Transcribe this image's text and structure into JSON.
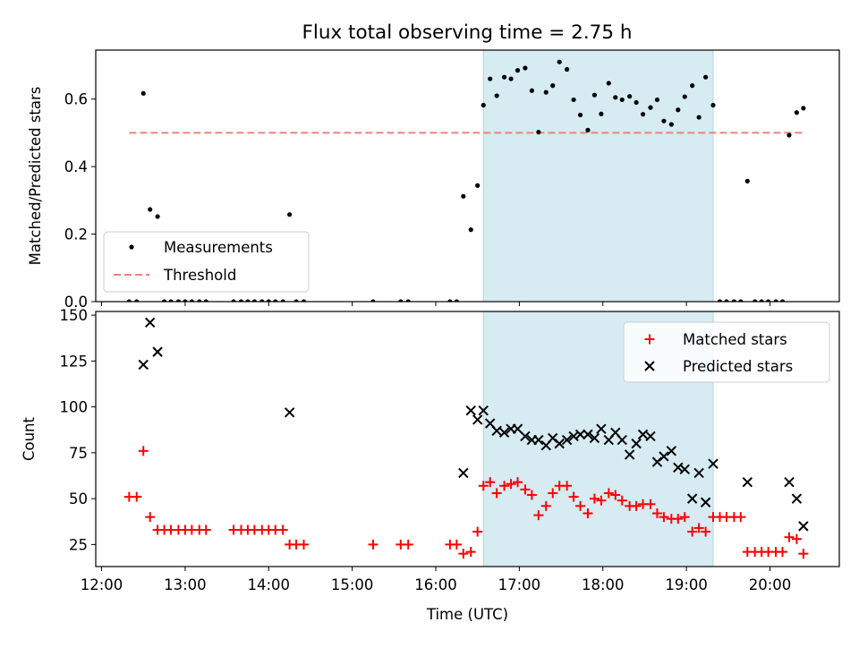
{
  "title": "Flux total observing time = 2.75 h",
  "colors": {
    "measurement": "#000000",
    "threshold": "#f08080",
    "shade": "#add8e6",
    "matched": "#ff0000",
    "predicted": "#000000"
  },
  "chart_data": [
    {
      "type": "scatter",
      "panel": "top",
      "title": "Flux total observing time = 2.75 h",
      "xlabel": "",
      "ylabel": "Matched/Predicted stars",
      "ylim": [
        0,
        0.745
      ],
      "yticks": [
        0.0,
        0.2,
        0.4,
        0.6
      ],
      "ytick_labels": [
        "0.0",
        "0.2",
        "0.4",
        "0.6"
      ],
      "xlim": [
        11.93,
        20.83
      ],
      "xticks": [
        12,
        13,
        14,
        15,
        16,
        17,
        18,
        19,
        20
      ],
      "xtick_labels": [
        "12:00",
        "13:00",
        "14:00",
        "15:00",
        "16:00",
        "17:00",
        "18:00",
        "19:00",
        "20:00"
      ],
      "legend": {
        "position": "lower-left",
        "entries": [
          "Measurements",
          "Threshold"
        ]
      },
      "threshold": {
        "name": "Threshold",
        "y": 0.5,
        "x_range": [
          12.33,
          20.42
        ]
      },
      "shaded_region": {
        "x_start": 16.57,
        "x_end": 19.32
      },
      "series": [
        {
          "name": "Measurements",
          "points": [
            [
              12.33,
              0.0
            ],
            [
              12.42,
              0.0
            ],
            [
              12.5,
              0.617
            ],
            [
              12.58,
              0.273
            ],
            [
              12.67,
              0.252
            ],
            [
              12.75,
              0.0
            ],
            [
              12.83,
              0.0
            ],
            [
              12.92,
              0.0
            ],
            [
              13.0,
              0.0
            ],
            [
              13.08,
              0.0
            ],
            [
              13.17,
              0.0
            ],
            [
              13.25,
              0.0
            ],
            [
              13.58,
              0.0
            ],
            [
              13.67,
              0.0
            ],
            [
              13.75,
              0.0
            ],
            [
              13.83,
              0.0
            ],
            [
              13.92,
              0.0
            ],
            [
              14.0,
              0.0
            ],
            [
              14.08,
              0.0
            ],
            [
              14.17,
              0.0
            ],
            [
              14.25,
              0.258
            ],
            [
              14.33,
              0.0
            ],
            [
              14.42,
              0.0
            ],
            [
              15.25,
              0.0
            ],
            [
              15.58,
              0.0
            ],
            [
              15.67,
              0.0
            ],
            [
              16.17,
              0.0
            ],
            [
              16.25,
              0.0
            ],
            [
              16.33,
              0.312
            ],
            [
              16.42,
              0.213
            ],
            [
              16.5,
              0.344
            ],
            [
              16.57,
              0.582
            ],
            [
              16.65,
              0.66
            ],
            [
              16.73,
              0.61
            ],
            [
              16.82,
              0.665
            ],
            [
              16.9,
              0.66
            ],
            [
              16.98,
              0.685
            ],
            [
              17.07,
              0.692
            ],
            [
              17.15,
              0.625
            ],
            [
              17.23,
              0.502
            ],
            [
              17.32,
              0.62
            ],
            [
              17.4,
              0.64
            ],
            [
              17.48,
              0.71
            ],
            [
              17.57,
              0.688
            ],
            [
              17.65,
              0.598
            ],
            [
              17.73,
              0.553
            ],
            [
              17.82,
              0.508
            ],
            [
              17.9,
              0.612
            ],
            [
              17.98,
              0.556
            ],
            [
              18.07,
              0.647
            ],
            [
              18.15,
              0.605
            ],
            [
              18.23,
              0.598
            ],
            [
              18.32,
              0.608
            ],
            [
              18.4,
              0.59
            ],
            [
              18.48,
              0.555
            ],
            [
              18.57,
              0.575
            ],
            [
              18.65,
              0.598
            ],
            [
              18.73,
              0.535
            ],
            [
              18.82,
              0.525
            ],
            [
              18.9,
              0.568
            ],
            [
              18.98,
              0.607
            ],
            [
              19.07,
              0.64
            ],
            [
              19.15,
              0.546
            ],
            [
              19.23,
              0.665
            ],
            [
              19.32,
              0.582
            ],
            [
              19.4,
              0.0
            ],
            [
              19.48,
              0.0
            ],
            [
              19.57,
              0.0
            ],
            [
              19.65,
              0.0
            ],
            [
              19.73,
              0.357
            ],
            [
              19.82,
              0.0
            ],
            [
              19.9,
              0.0
            ],
            [
              19.98,
              0.0
            ],
            [
              20.07,
              0.0
            ],
            [
              20.15,
              0.0
            ],
            [
              20.23,
              0.493
            ],
            [
              20.32,
              0.56
            ],
            [
              20.4,
              0.573
            ]
          ]
        }
      ]
    },
    {
      "type": "scatter",
      "panel": "bottom",
      "xlabel": "Time (UTC)",
      "ylabel": "Count",
      "ylim": [
        13,
        152
      ],
      "yticks": [
        25,
        50,
        75,
        100,
        125,
        150
      ],
      "ytick_labels": [
        "25",
        "50",
        "75",
        "100",
        "125",
        "150"
      ],
      "xlim": [
        11.93,
        20.83
      ],
      "xticks": [
        12,
        13,
        14,
        15,
        16,
        17,
        18,
        19,
        20
      ],
      "xtick_labels": [
        "12:00",
        "13:00",
        "14:00",
        "15:00",
        "16:00",
        "17:00",
        "18:00",
        "19:00",
        "20:00"
      ],
      "legend": {
        "position": "upper-right",
        "entries": [
          "Matched stars",
          "Predicted stars"
        ]
      },
      "shaded_region": {
        "x_start": 16.57,
        "x_end": 19.32
      },
      "series": [
        {
          "name": "Matched stars",
          "marker": "+",
          "points": [
            [
              12.33,
              51
            ],
            [
              12.42,
              51
            ],
            [
              12.5,
              76
            ],
            [
              12.58,
              40
            ],
            [
              12.67,
              33
            ],
            [
              12.75,
              33
            ],
            [
              12.83,
              33
            ],
            [
              12.92,
              33
            ],
            [
              13.0,
              33
            ],
            [
              13.08,
              33
            ],
            [
              13.17,
              33
            ],
            [
              13.25,
              33
            ],
            [
              13.58,
              33
            ],
            [
              13.67,
              33
            ],
            [
              13.75,
              33
            ],
            [
              13.83,
              33
            ],
            [
              13.92,
              33
            ],
            [
              14.0,
              33
            ],
            [
              14.08,
              33
            ],
            [
              14.17,
              33
            ],
            [
              14.25,
              25
            ],
            [
              14.33,
              25
            ],
            [
              14.42,
              25
            ],
            [
              15.25,
              25
            ],
            [
              15.58,
              25
            ],
            [
              15.67,
              25
            ],
            [
              16.17,
              25
            ],
            [
              16.25,
              25
            ],
            [
              16.33,
              20
            ],
            [
              16.42,
              21
            ],
            [
              16.5,
              32
            ],
            [
              16.57,
              57
            ],
            [
              16.65,
              59
            ],
            [
              16.73,
              53
            ],
            [
              16.82,
              57
            ],
            [
              16.9,
              58
            ],
            [
              16.98,
              59
            ],
            [
              17.07,
              55
            ],
            [
              17.15,
              52
            ],
            [
              17.23,
              41
            ],
            [
              17.32,
              46
            ],
            [
              17.4,
              53
            ],
            [
              17.48,
              57
            ],
            [
              17.57,
              57
            ],
            [
              17.65,
              51
            ],
            [
              17.73,
              46
            ],
            [
              17.82,
              42
            ],
            [
              17.9,
              50
            ],
            [
              17.98,
              49
            ],
            [
              18.07,
              53
            ],
            [
              18.15,
              52
            ],
            [
              18.23,
              49
            ],
            [
              18.32,
              46
            ],
            [
              18.4,
              46
            ],
            [
              18.48,
              47
            ],
            [
              18.57,
              47
            ],
            [
              18.65,
              42
            ],
            [
              18.73,
              40
            ],
            [
              18.82,
              39
            ],
            [
              18.9,
              39
            ],
            [
              18.98,
              40
            ],
            [
              19.07,
              32
            ],
            [
              19.15,
              34
            ],
            [
              19.23,
              32
            ],
            [
              19.32,
              40
            ],
            [
              19.4,
              40
            ],
            [
              19.48,
              40
            ],
            [
              19.57,
              40
            ],
            [
              19.65,
              40
            ],
            [
              19.73,
              21
            ],
            [
              19.82,
              21
            ],
            [
              19.9,
              21
            ],
            [
              19.98,
              21
            ],
            [
              20.07,
              21
            ],
            [
              20.15,
              21
            ],
            [
              20.23,
              29
            ],
            [
              20.32,
              28
            ],
            [
              20.4,
              20
            ]
          ]
        },
        {
          "name": "Predicted stars",
          "marker": "x",
          "points": [
            [
              12.5,
              123
            ],
            [
              12.58,
              146
            ],
            [
              12.67,
              130
            ],
            [
              14.25,
              97
            ],
            [
              16.33,
              64
            ],
            [
              16.42,
              98
            ],
            [
              16.5,
              93
            ],
            [
              16.57,
              98
            ],
            [
              16.65,
              91
            ],
            [
              16.73,
              87
            ],
            [
              16.82,
              86
            ],
            [
              16.9,
              88
            ],
            [
              16.98,
              88
            ],
            [
              17.07,
              84
            ],
            [
              17.15,
              82
            ],
            [
              17.23,
              82
            ],
            [
              17.32,
              79
            ],
            [
              17.4,
              83
            ],
            [
              17.48,
              80
            ],
            [
              17.57,
              82
            ],
            [
              17.65,
              84
            ],
            [
              17.73,
              85
            ],
            [
              17.82,
              85
            ],
            [
              17.9,
              83
            ],
            [
              17.98,
              88
            ],
            [
              18.07,
              82
            ],
            [
              18.15,
              86
            ],
            [
              18.23,
              82
            ],
            [
              18.32,
              74
            ],
            [
              18.4,
              80
            ],
            [
              18.48,
              85
            ],
            [
              18.57,
              84
            ],
            [
              18.65,
              70
            ],
            [
              18.73,
              73
            ],
            [
              18.82,
              76
            ],
            [
              18.9,
              67
            ],
            [
              18.98,
              66
            ],
            [
              19.07,
              50
            ],
            [
              19.15,
              64
            ],
            [
              19.23,
              48
            ],
            [
              19.32,
              69
            ],
            [
              19.73,
              59
            ],
            [
              20.23,
              59
            ],
            [
              20.32,
              50
            ],
            [
              20.4,
              35
            ]
          ]
        }
      ]
    }
  ]
}
